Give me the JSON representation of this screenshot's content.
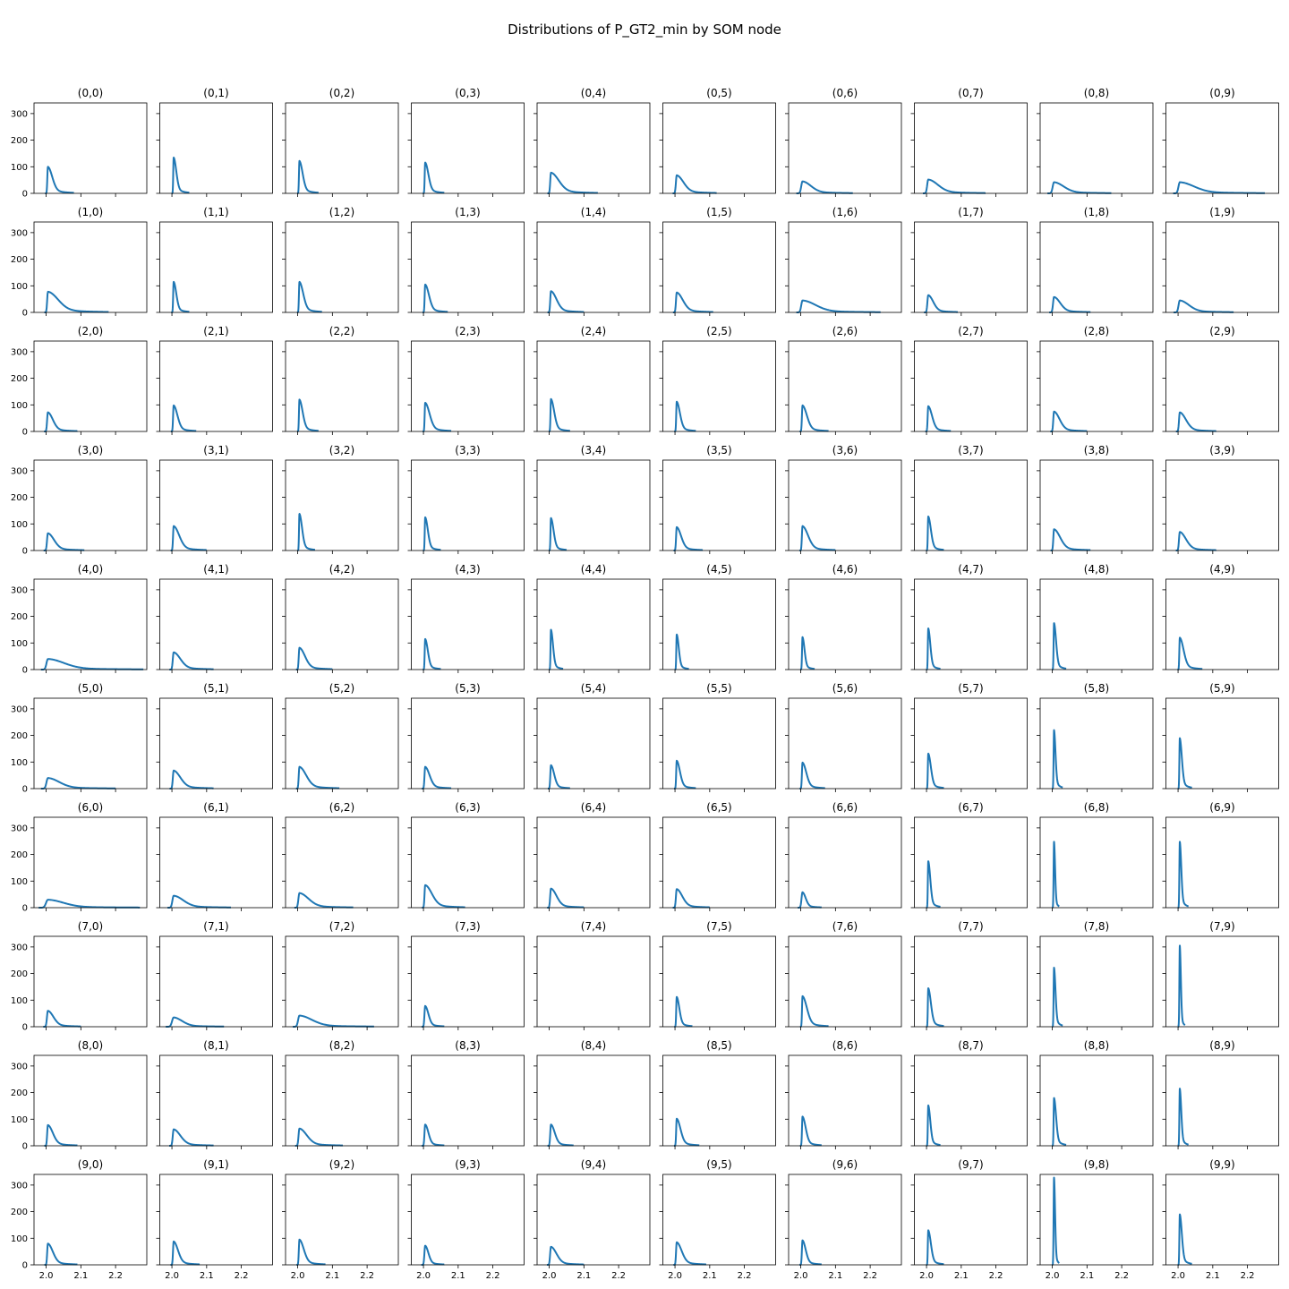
{
  "figure": {
    "title": "Distributions of P_GT2_min by SOM node"
  },
  "colors": {
    "line": "#1f77b4",
    "frame": "#000000",
    "text": "#000000"
  },
  "chart_data": {
    "type": "line",
    "subtype": "kde-grid",
    "rows": 10,
    "cols": 10,
    "xlim": [
      1.965,
      2.29
    ],
    "ylim": [
      0,
      340
    ],
    "xticks": [
      2.0,
      2.1,
      2.2
    ],
    "xtick_labels": [
      "2.0",
      "2.1",
      "2.2"
    ],
    "yticks": [
      0,
      100,
      200,
      300
    ],
    "ytick_labels": [
      "0",
      "100",
      "200",
      "300"
    ],
    "grid": false,
    "legend": false,
    "peak_x": 2.005,
    "panel_labels": [
      [
        "(0,0)",
        "(0,1)",
        "(0,2)",
        "(0,3)",
        "(0,4)",
        "(0,5)",
        "(0,6)",
        "(0,7)",
        "(0,8)",
        "(0,9)"
      ],
      [
        "(1,0)",
        "(1,1)",
        "(1,2)",
        "(1,3)",
        "(1,4)",
        "(1,5)",
        "(1,6)",
        "(1,7)",
        "(1,8)",
        "(1,9)"
      ],
      [
        "(2,0)",
        "(2,1)",
        "(2,2)",
        "(2,3)",
        "(2,4)",
        "(2,5)",
        "(2,6)",
        "(2,7)",
        "(2,8)",
        "(2,9)"
      ],
      [
        "(3,0)",
        "(3,1)",
        "(3,2)",
        "(3,3)",
        "(3,4)",
        "(3,5)",
        "(3,6)",
        "(3,7)",
        "(3,8)",
        "(3,9)"
      ],
      [
        "(4,0)",
        "(4,1)",
        "(4,2)",
        "(4,3)",
        "(4,4)",
        "(4,5)",
        "(4,6)",
        "(4,7)",
        "(4,8)",
        "(4,9)"
      ],
      [
        "(5,0)",
        "(5,1)",
        "(5,2)",
        "(5,3)",
        "(5,4)",
        "(5,5)",
        "(5,6)",
        "(5,7)",
        "(5,8)",
        "(5,9)"
      ],
      [
        "(6,0)",
        "(6,1)",
        "(6,2)",
        "(6,3)",
        "(6,4)",
        "(6,5)",
        "(6,6)",
        "(6,7)",
        "(6,8)",
        "(6,9)"
      ],
      [
        "(7,0)",
        "(7,1)",
        "(7,2)",
        "(7,3)",
        "(7,4)",
        "(7,5)",
        "(7,6)",
        "(7,7)",
        "(7,8)",
        "(7,9)"
      ],
      [
        "(8,0)",
        "(8,1)",
        "(8,2)",
        "(8,3)",
        "(8,4)",
        "(8,5)",
        "(8,6)",
        "(8,7)",
        "(8,8)",
        "(8,9)"
      ],
      [
        "(9,0)",
        "(9,1)",
        "(9,2)",
        "(9,3)",
        "(9,4)",
        "(9,5)",
        "(9,6)",
        "(9,7)",
        "(9,8)",
        "(9,9)"
      ]
    ],
    "peaks": [
      [
        100,
        135,
        122,
        116,
        78,
        68,
        45,
        52,
        42,
        42
      ],
      [
        78,
        115,
        115,
        105,
        80,
        75,
        45,
        65,
        58,
        45
      ],
      [
        72,
        98,
        120,
        108,
        122,
        112,
        98,
        95,
        75,
        72
      ],
      [
        65,
        92,
        138,
        125,
        122,
        88,
        92,
        128,
        80,
        70
      ],
      [
        40,
        65,
        82,
        115,
        150,
        132,
        122,
        155,
        175,
        120
      ],
      [
        40,
        68,
        82,
        82,
        88,
        105,
        98,
        132,
        220,
        190
      ],
      [
        30,
        45,
        55,
        85,
        72,
        70,
        58,
        175,
        248,
        248
      ],
      [
        60,
        35,
        42,
        78,
        0,
        112,
        115,
        145,
        222,
        305
      ],
      [
        78,
        62,
        65,
        80,
        80,
        102,
        110,
        152,
        180,
        215
      ],
      [
        80,
        88,
        95,
        72,
        68,
        85,
        92,
        130,
        328,
        190
      ]
    ],
    "tail_ends": [
      [
        2.08,
        2.05,
        2.06,
        2.06,
        2.14,
        2.12,
        2.15,
        2.17,
        2.17,
        2.25
      ],
      [
        2.18,
        2.05,
        2.07,
        2.07,
        2.1,
        2.11,
        2.23,
        2.09,
        2.11,
        2.16
      ],
      [
        2.09,
        2.07,
        2.06,
        2.08,
        2.06,
        2.06,
        2.08,
        2.07,
        2.1,
        2.11
      ],
      [
        2.11,
        2.1,
        2.05,
        2.05,
        2.05,
        2.08,
        2.1,
        2.05,
        2.11,
        2.11
      ],
      [
        2.28,
        2.12,
        2.1,
        2.05,
        2.04,
        2.04,
        2.04,
        2.04,
        2.04,
        2.07
      ],
      [
        2.2,
        2.12,
        2.12,
        2.08,
        2.06,
        2.06,
        2.07,
        2.05,
        2.03,
        2.04
      ],
      [
        2.27,
        2.17,
        2.16,
        2.12,
        2.1,
        2.1,
        2.06,
        2.04,
        2.02,
        2.03
      ],
      [
        2.1,
        2.15,
        2.22,
        2.06,
        2.05,
        2.05,
        2.08,
        2.05,
        2.03,
        2.02
      ],
      [
        2.09,
        2.12,
        2.13,
        2.06,
        2.07,
        2.07,
        2.06,
        2.04,
        2.04,
        2.03
      ],
      [
        2.09,
        2.08,
        2.08,
        2.06,
        2.1,
        2.09,
        2.06,
        2.05,
        2.02,
        2.04
      ]
    ]
  }
}
